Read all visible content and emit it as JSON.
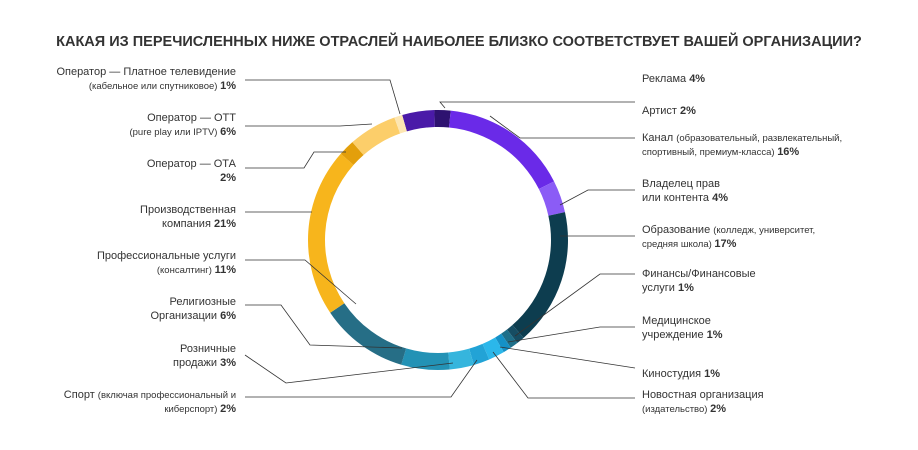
{
  "chart_data": {
    "type": "pie",
    "donut": true,
    "title": "КАКАЯ ИЗ ПЕРЕЧИСЛЕННЫХ НИЖЕ ОТРАСЛЕЙ НАИБОЛЕЕ БЛИЗКО СООТВЕТСТВУЕТ ВАШЕЙ ОРГАНИЗАЦИИ?",
    "unit": "%",
    "slices": [
      {
        "name": "Реклама",
        "value": 4,
        "label": "4%",
        "color": "#4a1aa8"
      },
      {
        "name": "Артист",
        "value": 2,
        "label": "2%",
        "color": "#2e1270"
      },
      {
        "name": "Канал",
        "detail": "(образовательный, развлекательный, спортивный, премиум-класса)",
        "value": 16,
        "label": "16%",
        "color": "#6a2ae8"
      },
      {
        "name": "Владелец прав или контента",
        "value": 4,
        "label": "4%",
        "color": "#8b5cf6"
      },
      {
        "name": "Образование",
        "detail": "(колледж, университет, средняя школа)",
        "value": 17,
        "label": "17%",
        "color": "#0d3d4f"
      },
      {
        "name": "Финансы/Финансовые услуги",
        "value": 1,
        "label": "1%",
        "color": "#164d63"
      },
      {
        "name": "Медицинское учреждение",
        "value": 1,
        "label": "1%",
        "color": "#1e6f89"
      },
      {
        "name": "Киностудия",
        "value": 1,
        "label": "1%",
        "color": "#1591c7"
      },
      {
        "name": "Новостная организация",
        "detail": "(издательство)",
        "value": 2,
        "label": "2%",
        "color": "#2bb7ea"
      },
      {
        "name": "Спорт",
        "detail": "(включая профессиональный и киберспорт)",
        "value": 2,
        "label": "2%",
        "color": "#22a3d6"
      },
      {
        "name": "Розничные продажи",
        "value": 3,
        "label": "3%",
        "color": "#35b5dd"
      },
      {
        "name": "Религиозные Организации",
        "value": 6,
        "label": "6%",
        "color": "#2392b5"
      },
      {
        "name": "Профессиональные услуги",
        "detail": "(консалтинг)",
        "value": 11,
        "label": "11%",
        "color": "#266e86"
      },
      {
        "name": "Производственная компания",
        "value": 21,
        "label": "21%",
        "color": "#f7b51c"
      },
      {
        "name": "Оператор — ОТА",
        "value": 2,
        "label": "2%",
        "color": "#e39f0b"
      },
      {
        "name": "Оператор — ОТТ",
        "detail": "(pure play или IPTV)",
        "value": 6,
        "label": "6%",
        "color": "#fcce6a"
      },
      {
        "name": "Оператор — Платное телевидение",
        "detail": "(кабельное или спутниковое)",
        "value": 1,
        "label": "1%",
        "color": "#fde6b2"
      }
    ],
    "labels": {
      "right": [
        {
          "lines": [
            [
              {
                "t": "Реклама "
              },
              {
                "t": "4%",
                "b": 1
              }
            ]
          ]
        },
        {
          "lines": [
            [
              {
                "t": "Артист "
              },
              {
                "t": "2%",
                "b": 1
              }
            ]
          ]
        },
        {
          "lines": [
            [
              {
                "t": "Канал "
              },
              {
                "t": "(образовательный, развлекательный,",
                "s": 1
              }
            ],
            [
              {
                "t": "спортивный, премиум-класса) ",
                "s": 1
              },
              {
                "t": "16%",
                "b": 1
              }
            ]
          ]
        },
        {
          "lines": [
            [
              {
                "t": "Владелец прав"
              }
            ],
            [
              {
                "t": "или контента "
              },
              {
                "t": "4%",
                "b": 1
              }
            ]
          ]
        },
        {
          "lines": [
            [
              {
                "t": "Образование "
              },
              {
                "t": "(колледж, университет,",
                "s": 1
              }
            ],
            [
              {
                "t": "средняя школа) ",
                "s": 1
              },
              {
                "t": "17%",
                "b": 1
              }
            ]
          ]
        },
        {
          "lines": [
            [
              {
                "t": "Финансы/Финансовые"
              }
            ],
            [
              {
                "t": "услуги "
              },
              {
                "t": "1%",
                "b": 1
              }
            ]
          ]
        },
        {
          "lines": [
            [
              {
                "t": "Медицинское"
              }
            ],
            [
              {
                "t": "учреждение "
              },
              {
                "t": "1%",
                "b": 1
              }
            ]
          ]
        },
        {
          "lines": [
            [
              {
                "t": "Киностудия "
              },
              {
                "t": "1%",
                "b": 1
              }
            ]
          ]
        },
        {
          "lines": [
            [
              {
                "t": "Новостная организация"
              }
            ],
            [
              {
                "t": "(издательство) ",
                "s": 1
              },
              {
                "t": "2%",
                "b": 1
              }
            ]
          ]
        }
      ],
      "left": [
        {
          "lines": [
            [
              {
                "t": "Оператор — Платное телевидение"
              }
            ],
            [
              {
                "t": "(кабельное или спутниковое) ",
                "s": 1
              },
              {
                "t": "1%",
                "b": 1
              }
            ]
          ]
        },
        {
          "lines": [
            [
              {
                "t": "Оператор — ОТТ"
              }
            ],
            [
              {
                "t": "(pure play или IPTV) ",
                "s": 1
              },
              {
                "t": "6%",
                "b": 1
              }
            ]
          ]
        },
        {
          "lines": [
            [
              {
                "t": "Оператор  — ОТА"
              }
            ],
            [
              {
                "t": "2%",
                "b": 1
              }
            ]
          ]
        },
        {
          "lines": [
            [
              {
                "t": "Производственная"
              }
            ],
            [
              {
                "t": "компания "
              },
              {
                "t": "21%",
                "b": 1
              }
            ]
          ]
        },
        {
          "lines": [
            [
              {
                "t": "Профессиональные услуги"
              }
            ],
            [
              {
                "t": "(консалтинг) ",
                "s": 1
              },
              {
                "t": "11%",
                "b": 1
              }
            ]
          ]
        },
        {
          "lines": [
            [
              {
                "t": "Религиозные"
              }
            ],
            [
              {
                "t": "Организации "
              },
              {
                "t": "6%",
                "b": 1
              }
            ]
          ]
        },
        {
          "lines": [
            [
              {
                "t": "Розничные"
              }
            ],
            [
              {
                "t": "продажи "
              },
              {
                "t": "3%",
                "b": 1
              }
            ]
          ]
        },
        {
          "lines": [
            [
              {
                "t": "Спорт "
              },
              {
                "t": "(включая профессиональный и",
                "s": 1
              }
            ],
            [
              {
                "t": "киберспорт) ",
                "s": 1
              },
              {
                "t": "2%",
                "b": 1
              }
            ]
          ]
        }
      ]
    }
  }
}
